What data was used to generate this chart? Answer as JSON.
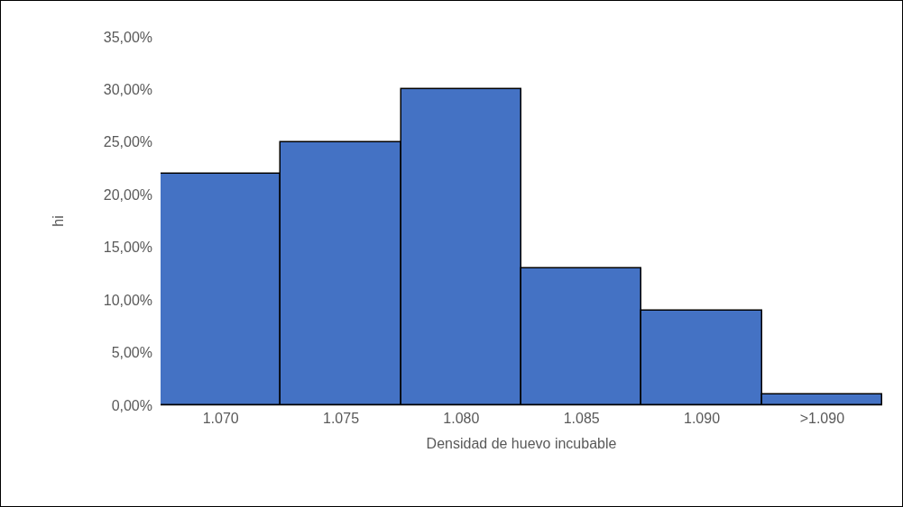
{
  "chart_data": {
    "type": "bar",
    "xlabel": "Densidad de huevo incubable",
    "ylabel": "hi",
    "categories": [
      "1.070",
      "1.075",
      "1.080",
      "1.085",
      "1.090",
      ">1.090"
    ],
    "values": [
      22,
      25,
      30,
      13,
      9,
      1
    ],
    "color": "#4472c4",
    "ylim": [
      0,
      35
    ],
    "yticks": [
      {
        "value": 0,
        "label": "0,00%"
      },
      {
        "value": 5,
        "label": "5,00%"
      },
      {
        "value": 10,
        "label": "10,00%"
      },
      {
        "value": 15,
        "label": "15,00%"
      },
      {
        "value": 20,
        "label": "20,00%"
      },
      {
        "value": 25,
        "label": "25,00%"
      },
      {
        "value": 30,
        "label": "30,00%"
      },
      {
        "value": 35,
        "label": "35,00%"
      }
    ]
  }
}
